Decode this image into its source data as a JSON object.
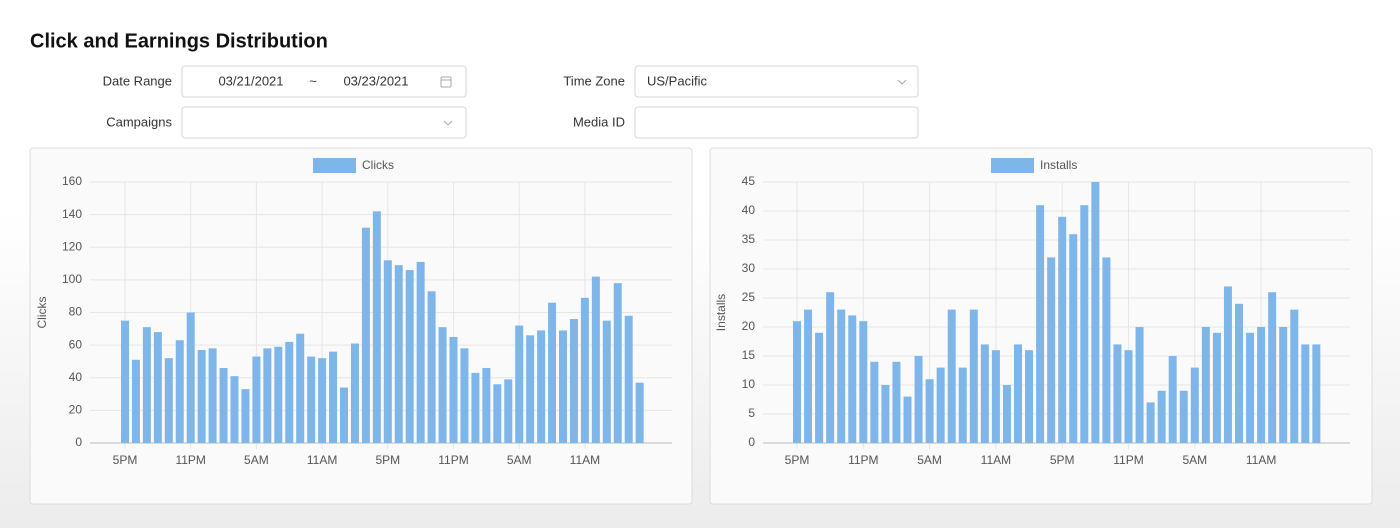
{
  "header": {
    "title": "Click and Earnings Distribution"
  },
  "form": {
    "date_range": {
      "label": "Date Range",
      "start": "03/21/2021",
      "separator": "~",
      "end": "03/23/2021"
    },
    "time_zone": {
      "label": "Time Zone",
      "value": "US/Pacific"
    },
    "campaigns": {
      "label": "Campaigns"
    },
    "media_id": {
      "label": "Media ID"
    }
  },
  "chart_data": [
    {
      "type": "bar",
      "ylabel": "Clicks",
      "legend": "top",
      "grid": true,
      "categories": [
        "5PM",
        null,
        null,
        null,
        null,
        null,
        "11PM",
        null,
        null,
        null,
        null,
        null,
        "5AM",
        null,
        null,
        null,
        null,
        null,
        "11AM",
        null,
        null,
        null,
        null,
        null,
        "5PM",
        null,
        null,
        null,
        null,
        null,
        "11PM",
        null,
        null,
        null,
        null,
        null,
        "5AM",
        null,
        null,
        null,
        null,
        null,
        "11AM",
        null,
        null,
        null,
        null,
        null
      ],
      "series": [
        {
          "name": "Clicks",
          "color": "#7fb6e9",
          "values": [
            75,
            51,
            71,
            68,
            52,
            63,
            80,
            57,
            58,
            46,
            41,
            33,
            53,
            58,
            59,
            62,
            67,
            53,
            52,
            56,
            34,
            61,
            132,
            142,
            112,
            109,
            106,
            111,
            93,
            71,
            65,
            58,
            43,
            46,
            36,
            39,
            72,
            66,
            69,
            86,
            69,
            76,
            89,
            102,
            75,
            98,
            78,
            37
          ]
        }
      ],
      "ylim": [
        0,
        160
      ],
      "yticks": [
        0,
        20,
        40,
        60,
        80,
        100,
        120,
        140,
        160
      ]
    },
    {
      "type": "bar",
      "ylabel": "Installs",
      "legend": "top",
      "grid": true,
      "categories": [
        "5PM",
        null,
        null,
        null,
        null,
        null,
        "11PM",
        null,
        null,
        null,
        null,
        null,
        "5AM",
        null,
        null,
        null,
        null,
        null,
        "11AM",
        null,
        null,
        null,
        null,
        null,
        "5PM",
        null,
        null,
        null,
        null,
        null,
        "11PM",
        null,
        null,
        null,
        null,
        null,
        "5AM",
        null,
        null,
        null,
        null,
        null,
        "11AM",
        null,
        null,
        null,
        null,
        null
      ],
      "series": [
        {
          "name": "Installs",
          "color": "#7fb6e9",
          "values": [
            21,
            23,
            19,
            26,
            23,
            22,
            21,
            14,
            10,
            14,
            8,
            15,
            11,
            13,
            23,
            13,
            23,
            17,
            16,
            10,
            17,
            16,
            41,
            32,
            39,
            36,
            41,
            45,
            32,
            17,
            16,
            20,
            7,
            9,
            15,
            9,
            13,
            20,
            19,
            27,
            24,
            19,
            20,
            26,
            20,
            23,
            17,
            17
          ]
        }
      ],
      "ylim": [
        0,
        45
      ],
      "yticks": [
        0,
        5,
        10,
        15,
        20,
        25,
        30,
        35,
        40,
        45
      ]
    }
  ]
}
